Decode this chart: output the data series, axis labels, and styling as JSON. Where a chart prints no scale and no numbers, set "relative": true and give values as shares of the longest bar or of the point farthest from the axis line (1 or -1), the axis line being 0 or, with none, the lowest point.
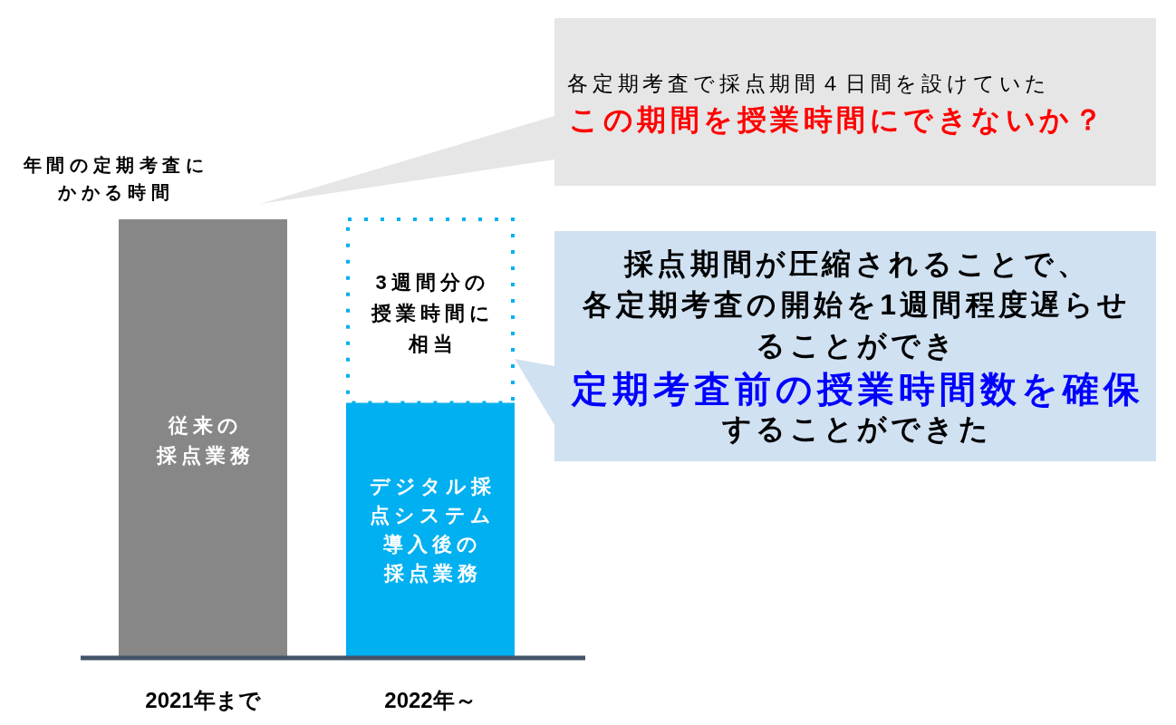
{
  "chart_data": {
    "type": "bar",
    "ylabel": "年間の定期考査にかかる時間",
    "categories": [
      "2021年まで",
      "2022年～"
    ],
    "relative": true,
    "stacked": true,
    "series": [
      {
        "colors": [
          "#878787",
          "#00b0f0"
        ],
        "values": [
          1,
          0.58
        ]
      },
      {
        "color": "#00b0f0",
        "line_style": "dotted",
        "values": [
          null,
          0.42
        ]
      }
    ],
    "annotations": [
      "従来の採点業務",
      "デジタル採点システム導入後の採点業務",
      "3週間分の授業時間に相当",
      "各定期考査で採点期間４日間を設けていた",
      "この期間を授業時間にできないか？",
      "採点期間が圧縮されることで、各定期考査の開始を1週間程度遅らせることができ",
      "定期考査前の授業時間数を確保",
      "することができた"
    ]
  }
}
